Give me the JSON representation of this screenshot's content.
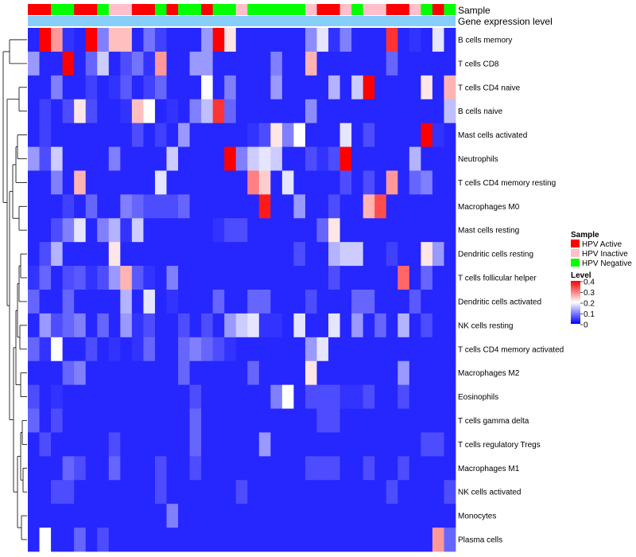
{
  "chart_data": {
    "type": "heatmap",
    "top_annotations": {
      "sample_label": "Sample",
      "gene_label": "Gene expression level",
      "sample_groups": [
        "A",
        "A",
        "N",
        "N",
        "A",
        "A",
        "N",
        "I",
        "I",
        "A",
        "A",
        "N",
        "A",
        "N",
        "N",
        "A",
        "N",
        "N",
        "I",
        "N",
        "N",
        "N",
        "N",
        "N",
        "I",
        "A",
        "A",
        "I",
        "N",
        "I",
        "I",
        "A",
        "A",
        "I",
        "N",
        "A",
        "N"
      ]
    },
    "rows": [
      "B cells memory",
      "T cells CD8",
      "T cells CD4 naive",
      "B cells naive",
      "Mast cells activated",
      "Neutrophils",
      "T cells CD4 memory resting",
      "Macrophages M0",
      "Mast cells resting",
      "Dendritic cells resting",
      "T cells follicular helper",
      "Dendritic cells activated",
      "NK cells resting",
      "T cells CD4 memory activated",
      "Macrophages M2",
      "Eosinophils",
      "T cells gamma delta",
      "T cells regulatory  Tregs",
      "Macrophages M1",
      "NK cells activated",
      "Monocytes",
      "Plasma cells"
    ],
    "values": [
      [
        0.03,
        0.4,
        0.28,
        0.04,
        0.03,
        0.4,
        0.1,
        0.25,
        0.25,
        0.03,
        0.09,
        0.05,
        0.03,
        0.03,
        0.03,
        0.12,
        0.4,
        0.22,
        0.03,
        0.03,
        0.03,
        0.03,
        0.03,
        0.03,
        0.11,
        0.18,
        0.04,
        0.1,
        0.03,
        0.03,
        0.03,
        0.36,
        0.03,
        0.04,
        0.03,
        0.18,
        0.03
      ],
      [
        0.12,
        0.03,
        0.03,
        0.4,
        0.03,
        0.08,
        0.16,
        0.03,
        0.06,
        0.09,
        0.04,
        0.28,
        0.03,
        0.03,
        0.12,
        0.12,
        0.03,
        0.03,
        0.03,
        0.03,
        0.03,
        0.1,
        0.03,
        0.03,
        0.26,
        0.03,
        0.03,
        0.03,
        0.03,
        0.03,
        0.03,
        0.08,
        0.03,
        0.03,
        0.03,
        0.03,
        0.03
      ],
      [
        0.03,
        0.03,
        0.1,
        0.03,
        0.03,
        0.05,
        0.03,
        0.04,
        0.07,
        0.03,
        0.05,
        0.08,
        0.03,
        0.03,
        0.03,
        0.2,
        0.03,
        0.1,
        0.03,
        0.03,
        0.03,
        0.12,
        0.03,
        0.03,
        0.03,
        0.03,
        0.14,
        0.03,
        0.16,
        0.4,
        0.03,
        0.03,
        0.03,
        0.03,
        0.22,
        0.03,
        0.26
      ],
      [
        0.03,
        0.05,
        0.03,
        0.06,
        0.22,
        0.06,
        0.03,
        0.03,
        0.04,
        0.25,
        0.2,
        0.03,
        0.04,
        0.03,
        0.1,
        0.15,
        0.36,
        0.08,
        0.03,
        0.03,
        0.03,
        0.03,
        0.03,
        0.03,
        0.11,
        0.03,
        0.03,
        0.03,
        0.03,
        0.03,
        0.03,
        0.03,
        0.03,
        0.03,
        0.03,
        0.03,
        0.15
      ],
      [
        0.03,
        0.05,
        0.03,
        0.03,
        0.03,
        0.03,
        0.03,
        0.03,
        0.03,
        0.06,
        0.03,
        0.05,
        0.03,
        0.12,
        0.03,
        0.03,
        0.03,
        0.03,
        0.03,
        0.04,
        0.06,
        0.22,
        0.1,
        0.2,
        0.03,
        0.03,
        0.03,
        0.18,
        0.03,
        0.06,
        0.03,
        0.03,
        0.03,
        0.03,
        0.4,
        0.04,
        0.03
      ],
      [
        0.12,
        0.06,
        0.16,
        0.03,
        0.03,
        0.03,
        0.03,
        0.1,
        0.03,
        0.03,
        0.03,
        0.03,
        0.16,
        0.03,
        0.03,
        0.03,
        0.03,
        0.4,
        0.1,
        0.16,
        0.18,
        0.16,
        0.03,
        0.03,
        0.06,
        0.04,
        0.06,
        0.4,
        0.03,
        0.03,
        0.03,
        0.03,
        0.03,
        0.14,
        0.03,
        0.03,
        0.03
      ],
      [
        0.03,
        0.03,
        0.1,
        0.03,
        0.26,
        0.03,
        0.03,
        0.03,
        0.03,
        0.03,
        0.03,
        0.18,
        0.03,
        0.03,
        0.03,
        0.03,
        0.03,
        0.03,
        0.03,
        0.3,
        0.24,
        0.03,
        0.18,
        0.03,
        0.03,
        0.03,
        0.03,
        0.06,
        0.03,
        0.06,
        0.03,
        0.28,
        0.03,
        0.08,
        0.1,
        0.03,
        0.03
      ],
      [
        0.03,
        0.03,
        0.03,
        0.05,
        0.03,
        0.08,
        0.03,
        0.03,
        0.1,
        0.08,
        0.06,
        0.06,
        0.06,
        0.08,
        0.03,
        0.03,
        0.03,
        0.03,
        0.03,
        0.03,
        0.38,
        0.03,
        0.03,
        0.12,
        0.03,
        0.03,
        0.06,
        0.03,
        0.03,
        0.26,
        0.34,
        0.03,
        0.03,
        0.03,
        0.03,
        0.03,
        0.03
      ],
      [
        0.03,
        0.03,
        0.06,
        0.1,
        0.18,
        0.03,
        0.1,
        0.14,
        0.04,
        0.16,
        0.03,
        0.03,
        0.03,
        0.03,
        0.03,
        0.03,
        0.04,
        0.06,
        0.06,
        0.03,
        0.03,
        0.03,
        0.03,
        0.03,
        0.03,
        0.08,
        0.22,
        0.03,
        0.03,
        0.03,
        0.03,
        0.03,
        0.03,
        0.03,
        0.03,
        0.03,
        0.03
      ],
      [
        0.03,
        0.06,
        0.14,
        0.03,
        0.03,
        0.03,
        0.03,
        0.22,
        0.03,
        0.03,
        0.03,
        0.03,
        0.03,
        0.03,
        0.03,
        0.03,
        0.03,
        0.03,
        0.03,
        0.03,
        0.03,
        0.03,
        0.03,
        0.06,
        0.03,
        0.03,
        0.14,
        0.16,
        0.16,
        0.03,
        0.03,
        0.05,
        0.03,
        0.03,
        0.22,
        0.12,
        0.03
      ],
      [
        0.04,
        0.08,
        0.03,
        0.06,
        0.07,
        0.04,
        0.06,
        0.12,
        0.26,
        0.07,
        0.04,
        0.03,
        0.1,
        0.03,
        0.03,
        0.03,
        0.03,
        0.03,
        0.03,
        0.03,
        0.03,
        0.03,
        0.03,
        0.03,
        0.03,
        0.03,
        0.06,
        0.03,
        0.03,
        0.03,
        0.03,
        0.03,
        0.32,
        0.03,
        0.08,
        0.03,
        0.03
      ],
      [
        0.08,
        0.03,
        0.03,
        0.08,
        0.03,
        0.03,
        0.03,
        0.03,
        0.14,
        0.03,
        0.18,
        0.03,
        0.04,
        0.03,
        0.03,
        0.03,
        0.08,
        0.03,
        0.03,
        0.08,
        0.08,
        0.03,
        0.03,
        0.03,
        0.06,
        0.03,
        0.03,
        0.03,
        0.08,
        0.08,
        0.03,
        0.03,
        0.03,
        0.07,
        0.03,
        0.03,
        0.03
      ],
      [
        0.03,
        0.12,
        0.06,
        0.08,
        0.1,
        0.03,
        0.08,
        0.03,
        0.12,
        0.04,
        0.06,
        0.03,
        0.03,
        0.06,
        0.03,
        0.06,
        0.03,
        0.12,
        0.16,
        0.18,
        0.04,
        0.04,
        0.03,
        0.18,
        0.03,
        0.03,
        0.18,
        0.03,
        0.12,
        0.03,
        0.08,
        0.03,
        0.14,
        0.03,
        0.06,
        0.03,
        0.03
      ],
      [
        0.08,
        0.04,
        0.2,
        0.03,
        0.03,
        0.06,
        0.03,
        0.04,
        0.03,
        0.04,
        0.08,
        0.03,
        0.03,
        0.08,
        0.1,
        0.08,
        0.06,
        0.04,
        0.03,
        0.03,
        0.03,
        0.03,
        0.03,
        0.03,
        0.12,
        0.18,
        0.03,
        0.03,
        0.03,
        0.03,
        0.03,
        0.03,
        0.03,
        0.03,
        0.03,
        0.03,
        0.03
      ],
      [
        0.03,
        0.03,
        0.03,
        0.08,
        0.1,
        0.03,
        0.03,
        0.03,
        0.03,
        0.03,
        0.03,
        0.03,
        0.03,
        0.08,
        0.03,
        0.03,
        0.03,
        0.03,
        0.03,
        0.08,
        0.03,
        0.03,
        0.03,
        0.03,
        0.22,
        0.03,
        0.03,
        0.03,
        0.03,
        0.03,
        0.03,
        0.03,
        0.12,
        0.03,
        0.03,
        0.03,
        0.03
      ],
      [
        0.06,
        0.03,
        0.04,
        0.03,
        0.03,
        0.03,
        0.03,
        0.03,
        0.03,
        0.03,
        0.03,
        0.03,
        0.03,
        0.03,
        0.06,
        0.03,
        0.03,
        0.03,
        0.03,
        0.03,
        0.03,
        0.1,
        0.2,
        0.03,
        0.06,
        0.06,
        0.06,
        0.04,
        0.04,
        0.06,
        0.03,
        0.03,
        0.06,
        0.03,
        0.03,
        0.03,
        0.03
      ],
      [
        0.08,
        0.03,
        0.06,
        0.03,
        0.03,
        0.03,
        0.03,
        0.03,
        0.03,
        0.03,
        0.03,
        0.03,
        0.03,
        0.03,
        0.08,
        0.03,
        0.03,
        0.03,
        0.03,
        0.03,
        0.03,
        0.03,
        0.03,
        0.03,
        0.03,
        0.06,
        0.06,
        0.03,
        0.03,
        0.03,
        0.03,
        0.03,
        0.03,
        0.03,
        0.03,
        0.03,
        0.03
      ],
      [
        0.03,
        0.06,
        0.03,
        0.03,
        0.03,
        0.03,
        0.03,
        0.06,
        0.03,
        0.03,
        0.03,
        0.03,
        0.03,
        0.03,
        0.08,
        0.03,
        0.03,
        0.03,
        0.03,
        0.03,
        0.12,
        0.03,
        0.03,
        0.03,
        0.03,
        0.03,
        0.03,
        0.03,
        0.03,
        0.03,
        0.03,
        0.03,
        0.03,
        0.03,
        0.06,
        0.06,
        0.03
      ],
      [
        0.03,
        0.03,
        0.03,
        0.08,
        0.06,
        0.03,
        0.03,
        0.08,
        0.03,
        0.03,
        0.03,
        0.06,
        0.03,
        0.03,
        0.06,
        0.03,
        0.03,
        0.03,
        0.03,
        0.03,
        0.03,
        0.03,
        0.03,
        0.03,
        0.06,
        0.06,
        0.06,
        0.03,
        0.03,
        0.06,
        0.03,
        0.03,
        0.06,
        0.03,
        0.03,
        0.03,
        0.03
      ],
      [
        0.03,
        0.03,
        0.06,
        0.06,
        0.03,
        0.03,
        0.03,
        0.03,
        0.03,
        0.03,
        0.03,
        0.06,
        0.03,
        0.03,
        0.03,
        0.03,
        0.03,
        0.03,
        0.06,
        0.03,
        0.03,
        0.03,
        0.03,
        0.03,
        0.03,
        0.03,
        0.03,
        0.03,
        0.03,
        0.03,
        0.03,
        0.06,
        0.03,
        0.03,
        0.03,
        0.03,
        0.06
      ],
      [
        0.03,
        0.03,
        0.03,
        0.03,
        0.03,
        0.03,
        0.03,
        0.03,
        0.03,
        0.03,
        0.03,
        0.03,
        0.1,
        0.03,
        0.03,
        0.03,
        0.03,
        0.03,
        0.03,
        0.03,
        0.03,
        0.03,
        0.03,
        0.03,
        0.03,
        0.03,
        0.03,
        0.03,
        0.03,
        0.03,
        0.03,
        0.03,
        0.03,
        0.03,
        0.03,
        0.03,
        0.03
      ],
      [
        0.03,
        0.2,
        0.03,
        0.03,
        0.08,
        0.03,
        0.06,
        0.03,
        0.03,
        0.03,
        0.03,
        0.03,
        0.03,
        0.03,
        0.03,
        0.03,
        0.03,
        0.03,
        0.03,
        0.03,
        0.03,
        0.03,
        0.03,
        0.03,
        0.03,
        0.03,
        0.03,
        0.03,
        0.03,
        0.03,
        0.03,
        0.03,
        0.03,
        0.03,
        0.03,
        0.28,
        0.08
      ]
    ],
    "legend": {
      "sample_title": "Sample",
      "groups": [
        {
          "key": "A",
          "label": "HPV Active",
          "color": "#ff0000"
        },
        {
          "key": "I",
          "label": "HPV Inactive",
          "color": "#ffc0cb"
        },
        {
          "key": "N",
          "label": "HPV Negative",
          "color": "#00ff00"
        }
      ],
      "level_title": "Level",
      "level_ticks": [
        "0.4",
        "0.3",
        "0.2",
        "0.1",
        "0"
      ],
      "colorscale": [
        "#0000ff",
        "#ffffff",
        "#ff0000"
      ],
      "range": [
        0,
        0.4
      ]
    },
    "gene_bar_color": "#87cefa",
    "dendrogram": "row"
  }
}
